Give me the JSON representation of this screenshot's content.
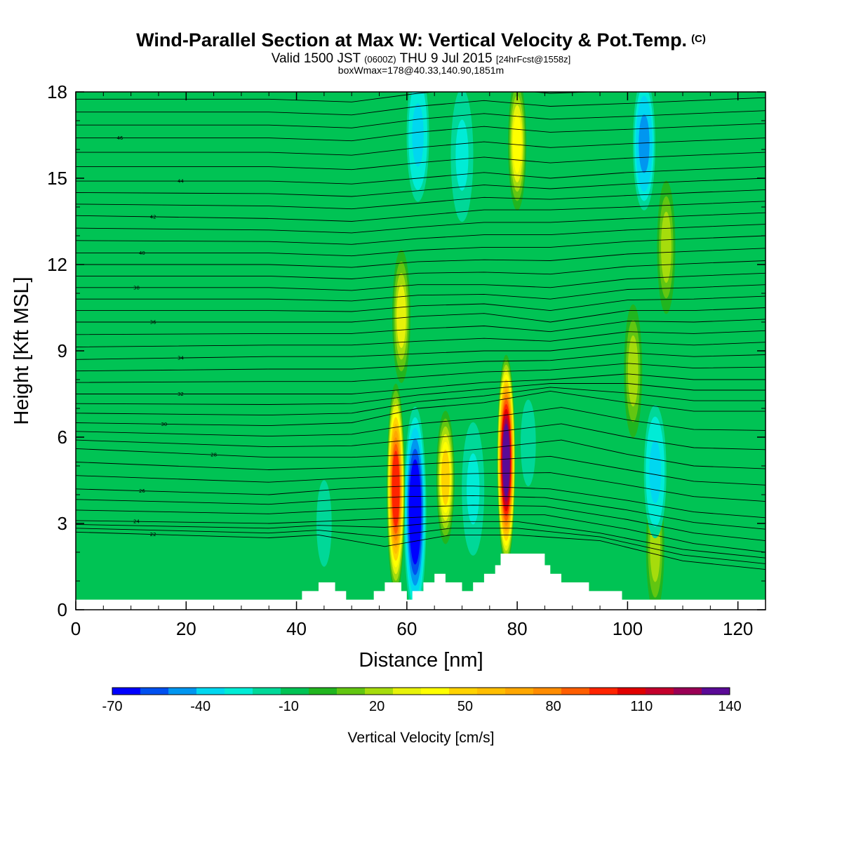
{
  "header": {
    "title": "Wind-Parallel Section at Max W: Vertical Velocity & Pot.Temp.",
    "copyright": "(C)",
    "subtitle_a": "Valid 1500 JST",
    "subtitle_b": "(0600Z)",
    "subtitle_c": "THU 9 Jul 2015",
    "subtitle_d": "[24hrFcst@1558z]",
    "note": "boxWmax=178@40.33,140.90,1851m"
  },
  "chart_data": {
    "type": "heatmap",
    "xlabel": "Distance [nm]",
    "ylabel": "Height [Kft MSL]",
    "xlim": [
      0,
      125
    ],
    "ylim": [
      0,
      18
    ],
    "x_ticks": [
      0,
      20,
      40,
      60,
      80,
      100,
      120
    ],
    "y_ticks": [
      0,
      3,
      6,
      9,
      12,
      15,
      18
    ],
    "background_value_cm_s": -5,
    "colorbar": {
      "title": "Vertical Velocity [cm/s]",
      "min": -70,
      "max": 140,
      "step": 10,
      "tick_labels": [
        "-70",
        "-40",
        "-10",
        "20",
        "50",
        "80",
        "110",
        "140"
      ],
      "colors": [
        "#0000ff",
        "#0050f0",
        "#0096f0",
        "#00d7f0",
        "#00ecd6",
        "#00d898",
        "#00c354",
        "#21b51f",
        "#62c611",
        "#a6dc0c",
        "#e7f20a",
        "#ffff00",
        "#ffd300",
        "#ffbe00",
        "#ffa700",
        "#ff8c00",
        "#ff5e00",
        "#ff2400",
        "#e10000",
        "#c4002c",
        "#9a0055",
        "#5a0a96"
      ]
    },
    "velocity_features": [
      {
        "x": 58,
        "y": 4.2,
        "value_cm_s": 100,
        "kind": "updraft"
      },
      {
        "x": 61.5,
        "y": 3.4,
        "value_cm_s": -70,
        "kind": "downdraft"
      },
      {
        "x": 67,
        "y": 4.6,
        "value_cm_s": 50,
        "kind": "updraft"
      },
      {
        "x": 72,
        "y": 4.2,
        "value_cm_s": -30,
        "kind": "downdraft"
      },
      {
        "x": 78,
        "y": 5.2,
        "value_cm_s": 140,
        "kind": "updraft"
      },
      {
        "x": 82,
        "y": 5.8,
        "value_cm_s": -20,
        "kind": "downdraft"
      },
      {
        "x": 105,
        "y": 4.8,
        "value_cm_s": -40,
        "kind": "downdraft"
      },
      {
        "x": 105,
        "y": 2.2,
        "value_cm_s": 20,
        "kind": "updraft"
      },
      {
        "x": 59,
        "y": 10.2,
        "value_cm_s": 30,
        "kind": "updraft"
      },
      {
        "x": 62,
        "y": 16.5,
        "value_cm_s": -40,
        "kind": "downdraft"
      },
      {
        "x": 70,
        "y": 15.8,
        "value_cm_s": -30,
        "kind": "downdraft"
      },
      {
        "x": 80,
        "y": 16.2,
        "value_cm_s": 40,
        "kind": "updraft"
      },
      {
        "x": 103,
        "y": 16.2,
        "value_cm_s": -50,
        "kind": "downdraft"
      },
      {
        "x": 107,
        "y": 12.6,
        "value_cm_s": 20,
        "kind": "updraft"
      },
      {
        "x": 101,
        "y": 8.3,
        "value_cm_s": 20,
        "kind": "updraft"
      },
      {
        "x": 45,
        "y": 3.0,
        "value_cm_s": -20,
        "kind": "downdraft"
      }
    ],
    "terrain": [
      [
        0,
        0.35
      ],
      [
        41,
        0.35
      ],
      [
        41,
        0.65
      ],
      [
        44,
        0.65
      ],
      [
        44,
        0.95
      ],
      [
        47,
        0.95
      ],
      [
        47,
        0.65
      ],
      [
        49,
        0.65
      ],
      [
        49,
        0.35
      ],
      [
        54,
        0.35
      ],
      [
        54,
        0.65
      ],
      [
        56,
        0.65
      ],
      [
        56,
        0.95
      ],
      [
        59,
        0.95
      ],
      [
        59,
        0.65
      ],
      [
        60,
        0.65
      ],
      [
        60,
        0.35
      ],
      [
        61,
        0.35
      ],
      [
        61,
        0.65
      ],
      [
        63,
        0.65
      ],
      [
        63,
        0.95
      ],
      [
        65,
        0.95
      ],
      [
        65,
        1.25
      ],
      [
        67,
        1.25
      ],
      [
        67,
        0.95
      ],
      [
        70,
        0.95
      ],
      [
        70,
        0.65
      ],
      [
        72,
        0.65
      ],
      [
        72,
        0.95
      ],
      [
        74,
        0.95
      ],
      [
        74,
        1.25
      ],
      [
        76,
        1.25
      ],
      [
        76,
        1.55
      ],
      [
        77,
        1.55
      ],
      [
        77,
        1.95
      ],
      [
        85,
        1.95
      ],
      [
        85,
        1.55
      ],
      [
        86,
        1.55
      ],
      [
        86,
        1.25
      ],
      [
        88,
        1.25
      ],
      [
        88,
        0.95
      ],
      [
        93,
        0.95
      ],
      [
        93,
        0.65
      ],
      [
        99,
        0.65
      ],
      [
        99,
        0.35
      ],
      [
        125,
        0.35
      ]
    ],
    "theta_contours": {
      "unit": "K",
      "lines": [
        {
          "label": "22",
          "label_x": 14,
          "levels": [
            [
              0,
              2.7
            ],
            [
              35,
              2.5
            ],
            [
              44,
              2.6
            ],
            [
              56,
              2.2
            ],
            [
              68,
              2.6
            ],
            [
              80,
              2.6
            ],
            [
              95,
              2.4
            ],
            [
              110,
              1.7
            ],
            [
              125,
              1.4
            ]
          ]
        },
        {
          "label": "24",
          "label_x": 11,
          "levels": [
            [
              0,
              3.1
            ],
            [
              35,
              3.0
            ],
            [
              48,
              3.1
            ],
            [
              60,
              3.2
            ],
            [
              72,
              3.3
            ],
            [
              85,
              3.3
            ],
            [
              100,
              2.8
            ],
            [
              112,
              2.3
            ],
            [
              125,
              2.0
            ]
          ]
        },
        {
          "label": "26",
          "label_x": 12,
          "levels": [
            [
              0,
              4.2
            ],
            [
              35,
              4.0
            ],
            [
              48,
              4.2
            ],
            [
              60,
              4.3
            ],
            [
              72,
              4.3
            ],
            [
              86,
              4.2
            ],
            [
              100,
              3.8
            ],
            [
              112,
              3.4
            ],
            [
              125,
              3.2
            ]
          ]
        },
        {
          "label": "28",
          "label_x": 25,
          "levels": [
            [
              0,
              5.6
            ],
            [
              35,
              5.3
            ],
            [
              50,
              5.3
            ],
            [
              62,
              5.4
            ],
            [
              74,
              5.6
            ],
            [
              88,
              5.9
            ],
            [
              100,
              5.4
            ],
            [
              112,
              5.0
            ],
            [
              125,
              4.9
            ]
          ]
        },
        {
          "label": "30",
          "label_x": 16,
          "levels": [
            [
              0,
              6.5
            ],
            [
              35,
              6.4
            ],
            [
              50,
              6.5
            ],
            [
              62,
              7.0
            ],
            [
              74,
              7.2
            ],
            [
              86,
              7.6
            ],
            [
              100,
              7.2
            ],
            [
              112,
              6.9
            ],
            [
              125,
              6.9
            ]
          ]
        },
        {
          "label": "32",
          "label_x": 19,
          "levels": [
            [
              0,
              7.5
            ],
            [
              35,
              7.5
            ],
            [
              50,
              7.5
            ],
            [
              62,
              7.7
            ],
            [
              74,
              7.9
            ],
            [
              86,
              8.0
            ],
            [
              100,
              8.2
            ],
            [
              112,
              8.0
            ],
            [
              125,
              8.0
            ]
          ]
        },
        {
          "label": "34",
          "label_x": 19,
          "levels": [
            [
              0,
              8.7
            ],
            [
              35,
              8.8
            ],
            [
              50,
              8.8
            ],
            [
              62,
              8.9
            ],
            [
              74,
              9.0
            ],
            [
              86,
              9.0
            ],
            [
              100,
              9.3
            ],
            [
              112,
              9.2
            ],
            [
              125,
              9.3
            ]
          ]
        },
        {
          "label": "36",
          "label_x": 14,
          "levels": [
            [
              0,
              10.0
            ],
            [
              35,
              10.0
            ],
            [
              50,
              10.0
            ],
            [
              62,
              10.2
            ],
            [
              74,
              10.3
            ],
            [
              86,
              10.0
            ],
            [
              100,
              10.4
            ],
            [
              112,
              10.4
            ],
            [
              125,
              10.5
            ]
          ]
        },
        {
          "label": "38",
          "label_x": 11,
          "levels": [
            [
              0,
              11.2
            ],
            [
              35,
              11.2
            ],
            [
              50,
              11.1
            ],
            [
              62,
              11.3
            ],
            [
              74,
              11.3
            ],
            [
              86,
              11.2
            ],
            [
              100,
              11.5
            ],
            [
              112,
              11.6
            ],
            [
              125,
              11.7
            ]
          ]
        },
        {
          "label": "40",
          "label_x": 12,
          "levels": [
            [
              0,
              12.4
            ],
            [
              35,
              12.4
            ],
            [
              50,
              12.3
            ],
            [
              62,
              12.5
            ],
            [
              74,
              12.6
            ],
            [
              86,
              12.6
            ],
            [
              100,
              12.8
            ],
            [
              112,
              12.9
            ],
            [
              125,
              13.0
            ]
          ]
        },
        {
          "label": "42",
          "label_x": 14,
          "levels": [
            [
              0,
              13.7
            ],
            [
              35,
              13.6
            ],
            [
              50,
              13.5
            ],
            [
              62,
              13.7
            ],
            [
              74,
              13.9
            ],
            [
              86,
              13.9
            ],
            [
              100,
              14.0
            ],
            [
              112,
              14.1
            ],
            [
              125,
              14.2
            ]
          ]
        },
        {
          "label": "44",
          "label_x": 19,
          "levels": [
            [
              0,
              14.9
            ],
            [
              35,
              14.9
            ],
            [
              50,
              14.8
            ],
            [
              62,
              15.0
            ],
            [
              74,
              15.2
            ],
            [
              86,
              15.0
            ],
            [
              100,
              15.2
            ],
            [
              112,
              15.3
            ],
            [
              125,
              15.4
            ]
          ]
        },
        {
          "label": "46",
          "label_x": 8,
          "levels": [
            [
              0,
              16.4
            ],
            [
              35,
              16.4
            ],
            [
              50,
              16.3
            ],
            [
              62,
              16.6
            ],
            [
              74,
              16.8
            ],
            [
              86,
              16.6
            ],
            [
              100,
              16.7
            ],
            [
              112,
              16.8
            ],
            [
              125,
              16.9
            ]
          ]
        }
      ]
    }
  }
}
